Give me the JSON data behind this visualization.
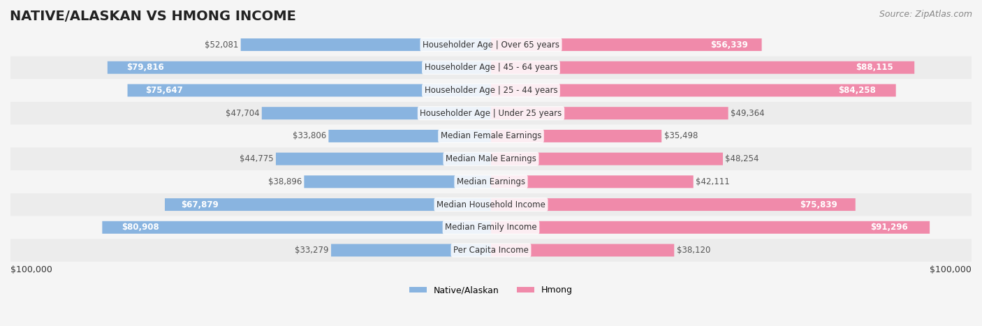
{
  "title": "NATIVE/ALASKAN VS HMONG INCOME",
  "source": "Source: ZipAtlas.com",
  "categories": [
    "Per Capita Income",
    "Median Family Income",
    "Median Household Income",
    "Median Earnings",
    "Median Male Earnings",
    "Median Female Earnings",
    "Householder Age | Under 25 years",
    "Householder Age | 25 - 44 years",
    "Householder Age | 45 - 64 years",
    "Householder Age | Over 65 years"
  ],
  "native_values": [
    33279,
    80908,
    67879,
    38896,
    44775,
    33806,
    47704,
    75647,
    79816,
    52081
  ],
  "hmong_values": [
    38120,
    91296,
    75839,
    42111,
    48254,
    35498,
    49364,
    84258,
    88115,
    56339
  ],
  "max_value": 100000,
  "native_color_bar": "#89b4e0",
  "hmong_color_bar": "#f08aaa",
  "native_color_label": "#5b9bd5",
  "hmong_color_label": "#e96b8a",
  "native_color_text_inside": "#ffffff",
  "hmong_color_text_inside": "#ffffff",
  "native_color_text_outside": "#555555",
  "hmong_color_text_outside": "#555555",
  "bg_color": "#f5f5f5",
  "row_bg_even": "#ececec",
  "row_bg_odd": "#f5f5f5",
  "legend_native": "Native/Alaskan",
  "legend_hmong": "Hmong",
  "xlabel_left": "$100,000",
  "xlabel_right": "$100,000",
  "inside_label_threshold": 55000,
  "title_fontsize": 14,
  "source_fontsize": 9,
  "bar_label_fontsize": 8.5,
  "category_fontsize": 8.5,
  "legend_fontsize": 9
}
